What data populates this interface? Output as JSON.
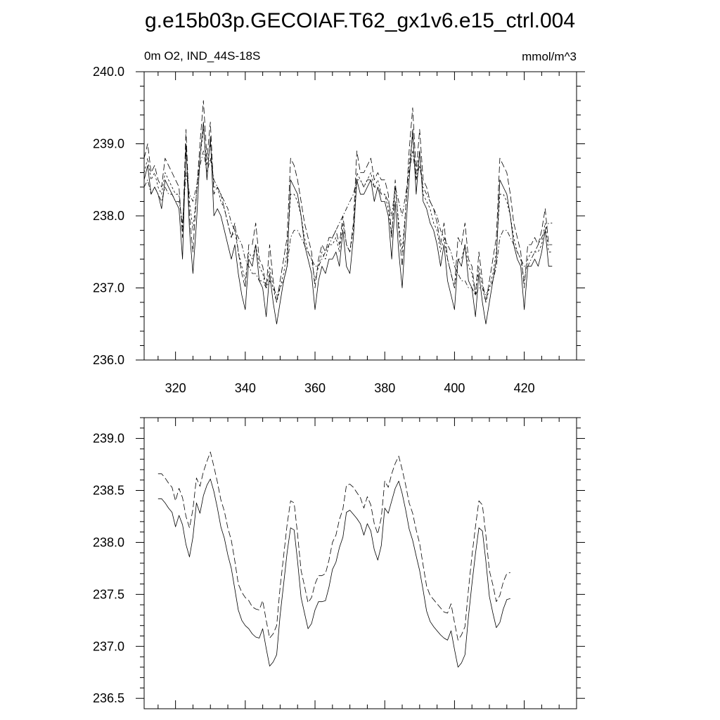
{
  "title": "g.e15b03p.GECOIAF.T62_gx1v6.e15_ctrl.004",
  "chart_data": [
    {
      "type": "line",
      "left_label": "0m O2, IND_44S-18S",
      "right_label": "mmol/m^3",
      "xlim": [
        311,
        435
      ],
      "ylim": [
        236.0,
        240.0
      ],
      "x_ticks": [
        320,
        340,
        360,
        380,
        400,
        420
      ],
      "x_tick_labels": [
        "320",
        "340",
        "360",
        "380",
        "400",
        "420"
      ],
      "y_ticks": [
        236.0,
        237.0,
        238.0,
        239.0,
        240.0
      ],
      "y_tick_labels": [
        "236.0",
        "237.0",
        "238.0",
        "239.0",
        "240.0"
      ],
      "x_start": 311,
      "x_step": 1,
      "series": [
        {
          "dash": "solid",
          "values": [
            238.5,
            238.7,
            238.3,
            238.4,
            238.3,
            238.1,
            238.5,
            238.4,
            238.3,
            238.2,
            238.1,
            237.4,
            239.0,
            237.8,
            237.2,
            237.9,
            238.8,
            239.3,
            238.5,
            239.1,
            238.0,
            238.1,
            238.0,
            237.8,
            237.6,
            237.4,
            237.6,
            237.2,
            236.9,
            236.7,
            237.4,
            237.3,
            237.6,
            237.1,
            237.0,
            236.6,
            237.2,
            236.8,
            236.5,
            236.8,
            237.1,
            237.3,
            238.5,
            238.4,
            238.3,
            238.0,
            237.6,
            237.4,
            237.2,
            236.7,
            237.1,
            237.3,
            237.2,
            237.4,
            237.4,
            237.5,
            237.3,
            237.8,
            237.3,
            237.2,
            237.7,
            238.5,
            238.3,
            238.3,
            238.4,
            238.5,
            238.2,
            238.4,
            238.2,
            238.2,
            238.0,
            237.4,
            238.2,
            237.5,
            237.0,
            237.8,
            238.5,
            239.2,
            238.3,
            238.9,
            238.2,
            238.1,
            237.9,
            237.8,
            237.6,
            237.3,
            237.6,
            237.1,
            236.9,
            236.7,
            237.4,
            237.3,
            237.6,
            237.1,
            237.0,
            236.6,
            237.2,
            236.8,
            236.5,
            236.8,
            237.1,
            237.4,
            238.5,
            238.4,
            238.3,
            238.0,
            237.6,
            237.4,
            237.3,
            236.7,
            237.3,
            237.3,
            237.4,
            237.3,
            237.5,
            237.8,
            237.3,
            237.3
          ]
        },
        {
          "dash": "long",
          "values": [
            238.8,
            239.0,
            238.6,
            238.7,
            238.5,
            238.4,
            238.8,
            238.7,
            238.6,
            238.5,
            238.4,
            237.7,
            239.2,
            238.0,
            237.5,
            238.3,
            239.0,
            239.6,
            238.8,
            239.3,
            238.3,
            238.4,
            238.3,
            238.1,
            237.9,
            237.7,
            237.9,
            237.5,
            237.2,
            237.0,
            237.6,
            237.6,
            237.9,
            237.4,
            237.3,
            237.0,
            237.6,
            237.1,
            236.8,
            237.1,
            237.4,
            237.7,
            238.8,
            238.7,
            238.5,
            238.2,
            237.9,
            237.7,
            237.5,
            237.0,
            237.4,
            237.6,
            237.5,
            237.7,
            237.7,
            237.8,
            237.6,
            238.0,
            237.6,
            237.5,
            237.9,
            238.9,
            238.6,
            238.6,
            238.7,
            238.8,
            238.5,
            238.6,
            238.5,
            238.5,
            238.3,
            237.7,
            238.5,
            237.8,
            237.3,
            238.1,
            238.9,
            239.5,
            238.6,
            239.2,
            238.5,
            238.4,
            238.2,
            238.1,
            237.9,
            237.6,
            237.9,
            237.4,
            237.2,
            237.0,
            237.7,
            237.6,
            237.9,
            237.4,
            237.3,
            236.9,
            237.5,
            237.1,
            236.8,
            237.1,
            237.4,
            237.7,
            238.8,
            238.7,
            238.6,
            238.3,
            237.9,
            237.7,
            237.5,
            237.0,
            237.6,
            237.6,
            237.7,
            237.6,
            237.8,
            238.1,
            237.6,
            237.6
          ]
        },
        {
          "dash": "dashdot",
          "values": [
            238.4,
            238.5,
            238.3,
            238.4,
            238.3,
            238.2,
            238.4,
            238.3,
            238.3,
            238.2,
            238.2,
            237.9,
            238.6,
            238.3,
            238.2,
            238.4,
            238.7,
            238.9,
            238.6,
            238.8,
            238.5,
            238.4,
            238.3,
            238.2,
            238.1,
            237.9,
            237.8,
            237.7,
            237.6,
            237.4,
            237.3,
            237.2,
            237.2,
            237.1,
            237.1,
            237.0,
            237.1,
            237.0,
            236.9,
            237.0,
            237.1,
            237.3,
            237.7,
            237.8,
            237.8,
            237.7,
            237.6,
            237.5,
            237.4,
            237.3,
            237.3,
            237.4,
            237.5,
            237.6,
            237.7,
            237.8,
            237.9,
            238.0,
            238.1,
            238.2,
            238.3,
            238.5,
            238.5,
            238.4,
            238.5,
            238.5,
            238.4,
            238.4,
            238.3,
            238.3,
            238.2,
            238.0,
            238.4,
            238.2,
            238.0,
            238.3,
            238.6,
            238.9,
            238.5,
            238.7,
            238.4,
            238.3,
            238.2,
            238.1,
            238.0,
            237.8,
            237.7,
            237.6,
            237.5,
            237.3,
            237.2,
            237.1,
            237.1,
            237.0,
            237.0,
            236.9,
            237.0,
            237.0,
            236.9,
            237.0,
            237.1,
            237.3,
            237.7,
            237.8,
            237.8,
            237.7,
            237.6,
            237.5,
            237.4,
            237.3,
            237.3,
            237.4,
            237.5,
            237.6,
            237.7,
            237.8,
            237.9,
            237.9
          ]
        },
        {
          "dash": "short",
          "values": [
            238.6,
            238.8,
            238.5,
            238.6,
            238.4,
            238.3,
            238.6,
            238.5,
            238.4,
            238.3,
            238.3,
            237.8,
            238.9,
            238.2,
            237.8,
            238.3,
            238.8,
            239.2,
            238.7,
            239.0,
            238.4,
            238.4,
            238.2,
            238.1,
            237.9,
            237.7,
            237.8,
            237.5,
            237.3,
            237.1,
            237.5,
            237.4,
            237.6,
            237.3,
            237.2,
            237.0,
            237.3,
            237.0,
            236.8,
            237.0,
            237.2,
            237.5,
            238.3,
            238.3,
            238.2,
            238.0,
            237.7,
            237.5,
            237.4,
            237.1,
            237.3,
            237.5,
            237.4,
            237.6,
            237.6,
            237.7,
            237.5,
            237.9,
            237.6,
            237.5,
            237.8,
            238.6,
            238.5,
            238.4,
            238.5,
            238.6,
            238.4,
            238.5,
            238.3,
            238.3,
            238.1,
            237.7,
            238.4,
            237.9,
            237.5,
            238.1,
            238.7,
            239.1,
            238.5,
            238.9,
            238.3,
            238.2,
            238.1,
            237.9,
            237.8,
            237.5,
            237.7,
            237.4,
            237.2,
            237.0,
            237.4,
            237.4,
            237.6,
            237.3,
            237.2,
            236.9,
            237.3,
            237.0,
            236.8,
            237.0,
            237.2,
            237.5,
            238.3,
            238.3,
            238.2,
            238.0,
            237.7,
            237.5,
            237.4,
            237.1,
            237.4,
            237.5,
            237.5,
            237.5,
            237.6,
            237.9,
            237.5,
            237.5
          ]
        }
      ]
    },
    {
      "type": "line",
      "xlim": [
        311,
        435
      ],
      "ylim": [
        236.4,
        239.2
      ],
      "x_ticks": [
        320,
        340,
        360,
        380,
        400,
        420
      ],
      "x_tick_labels": [],
      "y_ticks": [
        236.5,
        237.0,
        237.5,
        238.0,
        238.5,
        239.0
      ],
      "y_tick_labels": [
        "236.5",
        "237.0",
        "237.5",
        "238.0",
        "238.5",
        "239.0"
      ],
      "x_start": 315,
      "x_step": 1,
      "series": [
        {
          "dash": "solid",
          "values": [
            238.42,
            238.42,
            238.38,
            238.33,
            238.29,
            238.15,
            238.26,
            238.17,
            237.98,
            237.86,
            238.05,
            238.38,
            238.28,
            238.45,
            238.55,
            238.61,
            238.49,
            238.33,
            238.15,
            238.04,
            237.88,
            237.75,
            237.55,
            237.35,
            237.25,
            237.2,
            237.17,
            237.12,
            237.09,
            237.08,
            237.17,
            236.98,
            236.81,
            236.85,
            236.92,
            237.3,
            237.6,
            237.9,
            238.14,
            238.12,
            237.82,
            237.47,
            237.32,
            237.17,
            237.22,
            237.35,
            237.43,
            237.43,
            237.44,
            237.57,
            237.74,
            237.81,
            237.95,
            238.05,
            238.29,
            238.31,
            238.27,
            238.23,
            238.18,
            238.07,
            238.18,
            238.11,
            237.93,
            237.83,
            237.97,
            238.33,
            238.28,
            238.4,
            238.52,
            238.59,
            238.47,
            238.31,
            238.13,
            238.02,
            237.87,
            237.73,
            237.54,
            237.34,
            237.24,
            237.19,
            237.15,
            237.11,
            237.08,
            237.06,
            237.15,
            236.97,
            236.8,
            236.84,
            236.92,
            237.29,
            237.6,
            237.89,
            238.14,
            238.11,
            237.82,
            237.48,
            237.32,
            237.18,
            237.23,
            237.36,
            237.45,
            237.46
          ]
        },
        {
          "dash": "long",
          "values": [
            238.66,
            238.66,
            238.62,
            238.57,
            238.53,
            238.4,
            238.52,
            238.43,
            238.25,
            238.14,
            238.32,
            238.62,
            238.54,
            238.68,
            238.78,
            238.87,
            238.73,
            238.58,
            238.41,
            238.3,
            238.14,
            238.02,
            237.82,
            237.6,
            237.52,
            237.47,
            237.44,
            237.38,
            237.36,
            237.35,
            237.44,
            237.25,
            237.08,
            237.12,
            237.2,
            237.57,
            237.87,
            238.17,
            238.4,
            238.38,
            238.08,
            237.73,
            237.58,
            237.42,
            237.47,
            237.6,
            237.68,
            237.68,
            237.7,
            237.83,
            238.0,
            238.07,
            238.22,
            238.32,
            238.55,
            238.56,
            238.53,
            238.48,
            238.43,
            238.33,
            238.44,
            238.36,
            238.18,
            238.08,
            238.24,
            238.59,
            238.53,
            238.66,
            238.76,
            238.83,
            238.7,
            238.55,
            238.38,
            238.28,
            238.12,
            237.99,
            237.78,
            237.58,
            237.49,
            237.45,
            237.41,
            237.37,
            237.33,
            237.32,
            237.41,
            237.23,
            237.06,
            237.11,
            237.19,
            237.55,
            237.87,
            238.15,
            238.4,
            238.36,
            238.07,
            237.73,
            237.59,
            237.43,
            237.49,
            237.62,
            237.7,
            237.71
          ]
        }
      ]
    }
  ]
}
